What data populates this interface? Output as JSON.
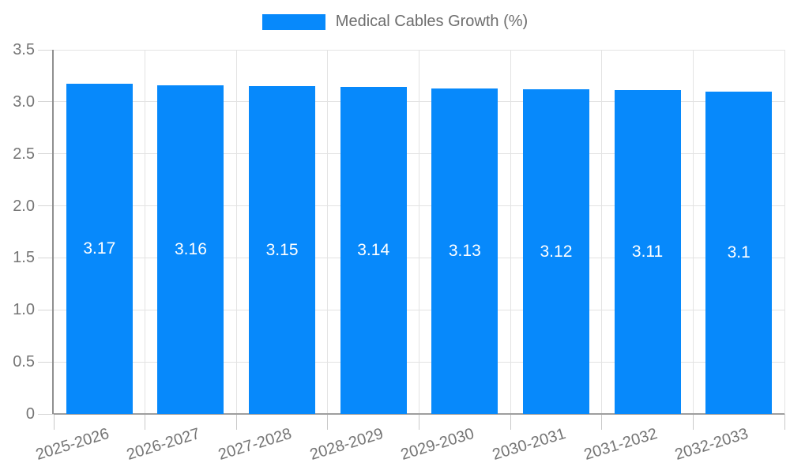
{
  "legend": {
    "label": "Medical Cables Growth (%)",
    "swatch_color": "#0789fb"
  },
  "chart_data": {
    "type": "bar",
    "title": "Medical Cables Growth (%)",
    "categories": [
      "2025-2026",
      "2026-2027",
      "2027-2028",
      "2028-2029",
      "2029-2030",
      "2030-2031",
      "2031-2032",
      "2032-2033"
    ],
    "values": [
      3.17,
      3.16,
      3.15,
      3.14,
      3.13,
      3.12,
      3.11,
      3.1
    ],
    "value_labels": [
      "3.17",
      "3.16",
      "3.15",
      "3.14",
      "3.13",
      "3.12",
      "3.11",
      "3.1"
    ],
    "xlabel": "",
    "ylabel": "",
    "ylim": [
      0,
      3.5
    ],
    "yticks": [
      0,
      0.5,
      1,
      1.5,
      2,
      2.5,
      3,
      3.5
    ],
    "ytick_labels": [
      "0",
      "0.5",
      "1.0",
      "1.5",
      "2.0",
      "2.5",
      "3.0",
      "3.5"
    ],
    "grid": true,
    "legend_position": "top",
    "x_label_rotation_deg": -17,
    "bar_color": "#0789fb",
    "value_label_color": "#ffffff",
    "grid_color": "#e3e3e3",
    "axis_color": "#9e9e9e",
    "tick_text_color": "#757575"
  }
}
